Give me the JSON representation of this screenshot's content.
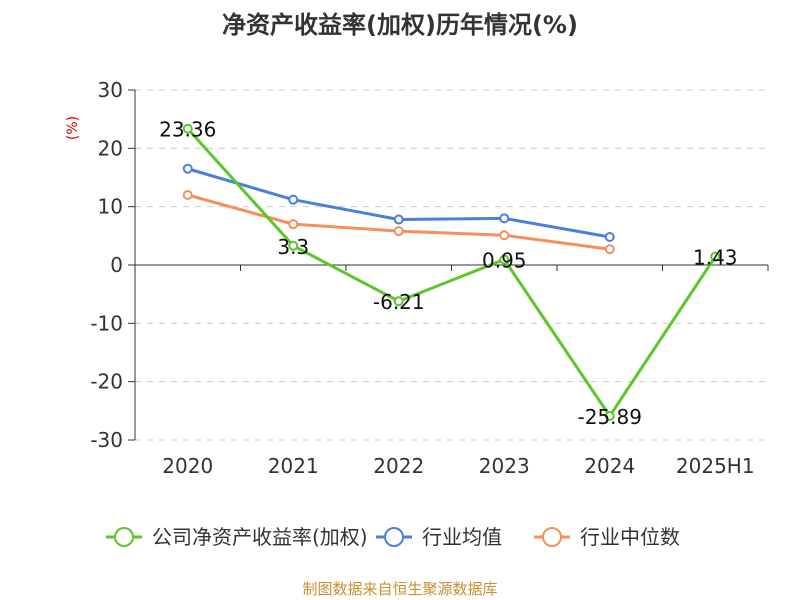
{
  "chart_data": {
    "type": "line",
    "title": "净资产收益率(加权)历年情况(%)",
    "ylabel": "(%)",
    "xlabel": "",
    "categories": [
      "2020",
      "2021",
      "2022",
      "2023",
      "2024",
      "2025H1"
    ],
    "ylim": [
      -30,
      30
    ],
    "yticks": [
      30,
      20,
      10,
      0,
      -10,
      -20,
      -30
    ],
    "grid": true,
    "legend_position": "bottom",
    "series": [
      {
        "name": "公司净资产收益率(加权)",
        "color": "#5bc72a",
        "values": [
          23.36,
          3.3,
          -6.21,
          0.95,
          -25.89,
          1.43
        ],
        "labels": [
          "23.36",
          "3.3",
          "-6.21",
          "0.95",
          "-25.89",
          "1.43"
        ]
      },
      {
        "name": "行业均值",
        "color": "#4a7fdb",
        "values": [
          16.5,
          11.2,
          7.8,
          8.0,
          4.8,
          null
        ]
      },
      {
        "name": "行业中位数",
        "color": "#f5905a",
        "values": [
          12.0,
          7.0,
          5.8,
          5.1,
          2.7,
          null
        ]
      }
    ]
  },
  "source": "制图数据来自恒生聚源数据库"
}
